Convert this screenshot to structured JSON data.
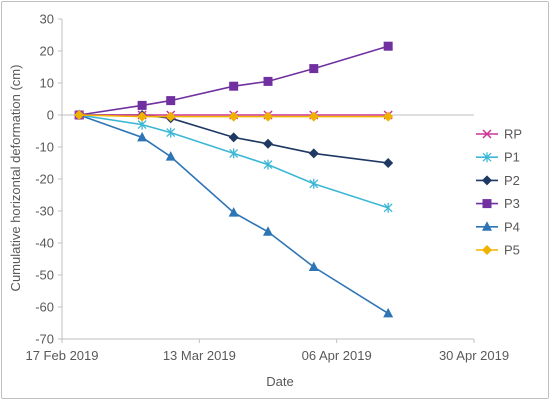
{
  "chart_data": {
    "type": "line",
    "title": "",
    "xlabel": "Date",
    "ylabel": "Cumulative horizontal deformation (cm)",
    "x_ticks": [
      "17 Feb 2019",
      "13 Mar 2019",
      "06 Apr 2019",
      "30 Apr 2019"
    ],
    "y_ticks": [
      30,
      20,
      10,
      0,
      -10,
      -20,
      -30,
      -40,
      -50,
      -60,
      -70
    ],
    "xlim": [
      "2019-02-17",
      "2019-04-30"
    ],
    "ylim": [
      -70,
      30
    ],
    "grid": false,
    "legend_position": "right",
    "x": [
      "2019-02-20",
      "2019-03-03",
      "2019-03-08",
      "2019-03-19",
      "2019-03-25",
      "2019-04-02",
      "2019-04-15"
    ],
    "series": [
      {
        "name": "RP",
        "color": "#cc3399",
        "marker": "x",
        "points": [
          [
            "2019-02-20",
            0
          ],
          [
            "2019-03-03",
            0
          ],
          [
            "2019-03-08",
            0
          ],
          [
            "2019-03-19",
            0
          ],
          [
            "2019-03-25",
            0
          ],
          [
            "2019-04-02",
            0
          ],
          [
            "2019-04-15",
            0
          ]
        ]
      },
      {
        "name": "P1",
        "color": "#3cb8d6",
        "marker": "asterisk",
        "points": [
          [
            "2019-02-20",
            0
          ],
          [
            "2019-03-03",
            -3
          ],
          [
            "2019-03-08",
            -5.5
          ],
          [
            "2019-03-19",
            -12
          ],
          [
            "2019-03-25",
            -15.5
          ],
          [
            "2019-04-02",
            -21.5
          ],
          [
            "2019-04-15",
            -29
          ]
        ]
      },
      {
        "name": "P2",
        "color": "#1f3864",
        "marker": "diamond",
        "points": [
          [
            "2019-02-20",
            0
          ],
          [
            "2019-03-03",
            0
          ],
          [
            "2019-03-08",
            -1
          ],
          [
            "2019-03-19",
            -7
          ],
          [
            "2019-03-25",
            -9
          ],
          [
            "2019-04-02",
            -12
          ],
          [
            "2019-04-15",
            -15
          ]
        ]
      },
      {
        "name": "P3",
        "color": "#7030a0",
        "marker": "square",
        "points": [
          [
            "2019-02-20",
            0
          ],
          [
            "2019-03-03",
            3
          ],
          [
            "2019-03-08",
            4.5
          ],
          [
            "2019-03-19",
            9
          ],
          [
            "2019-03-25",
            10.5
          ],
          [
            "2019-04-02",
            14.5
          ],
          [
            "2019-04-15",
            21.5
          ]
        ]
      },
      {
        "name": "P4",
        "color": "#2e75b6",
        "marker": "triangle",
        "points": [
          [
            "2019-02-20",
            0
          ],
          [
            "2019-03-03",
            -7
          ],
          [
            "2019-03-08",
            -13
          ],
          [
            "2019-03-19",
            -30.5
          ],
          [
            "2019-03-25",
            -36.5
          ],
          [
            "2019-04-02",
            -47.5
          ],
          [
            "2019-04-15",
            -62
          ]
        ]
      },
      {
        "name": "P5",
        "color": "#f0b400",
        "marker": "diamond",
        "points": [
          [
            "2019-02-20",
            0
          ],
          [
            "2019-03-03",
            -0.5
          ],
          [
            "2019-03-08",
            -0.5
          ],
          [
            "2019-03-19",
            -0.5
          ],
          [
            "2019-03-25",
            -0.5
          ],
          [
            "2019-04-02",
            -0.5
          ],
          [
            "2019-04-15",
            -0.5
          ]
        ]
      }
    ]
  }
}
